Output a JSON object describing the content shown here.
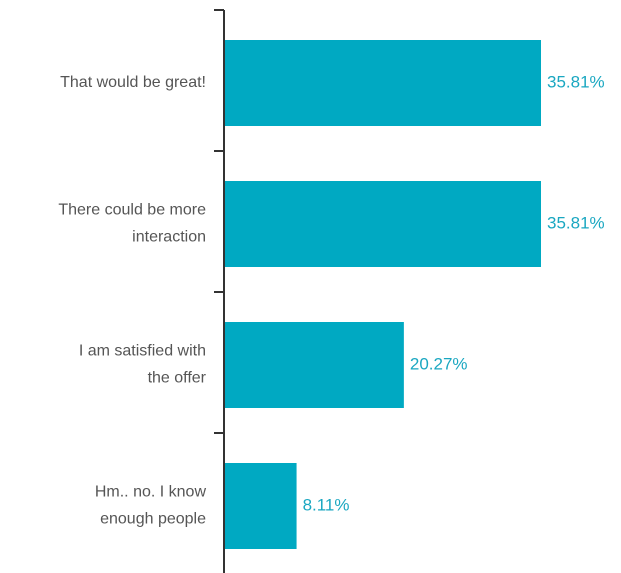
{
  "chart_data": {
    "type": "bar",
    "orientation": "horizontal",
    "title": "",
    "xlabel": "",
    "ylabel": "",
    "categories": [
      "That would be great!",
      "There could be more interaction",
      "I am satisfied with the offer",
      "Hm.. no. I know enough people"
    ],
    "category_lines": [
      [
        "That would be great!"
      ],
      [
        "There could be more",
        "interaction"
      ],
      [
        "I am satisfied with",
        "the offer"
      ],
      [
        "Hm.. no. I know",
        "enough people"
      ]
    ],
    "values": [
      35.81,
      35.81,
      20.27,
      8.11
    ],
    "value_labels": [
      "35.81%",
      "35.81%",
      "20.27%",
      "8.11%"
    ],
    "xlim": [
      0,
      40
    ],
    "grid": false,
    "legend": "none",
    "colors": {
      "bar": "#00a9c2",
      "value_label": "#1aa7c1",
      "category_label": "#555555",
      "axis": "#333333"
    }
  }
}
